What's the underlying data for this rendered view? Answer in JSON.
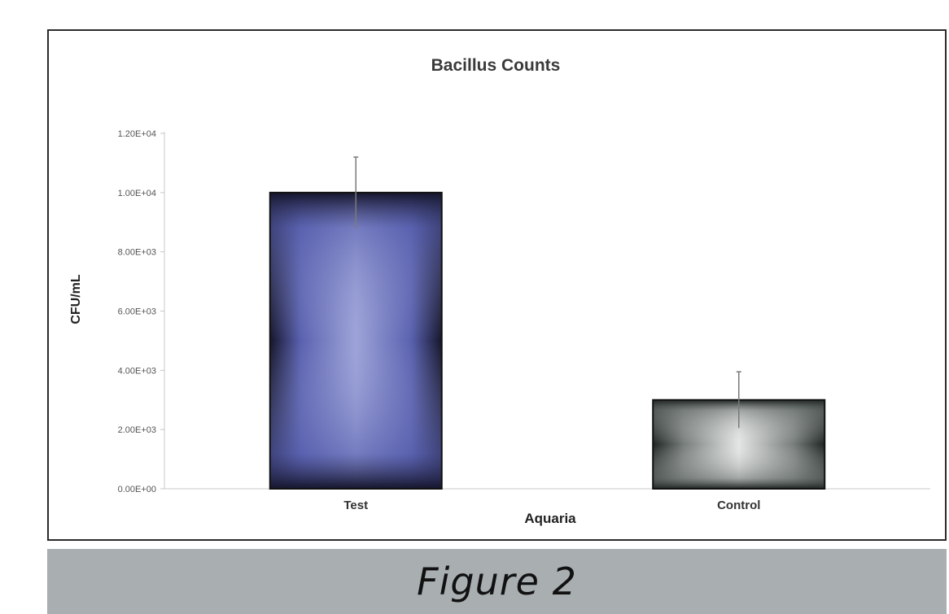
{
  "chart_data": {
    "type": "bar",
    "title": "Bacillus Counts",
    "xlabel": "Aquaria",
    "ylabel": "CFU/mL",
    "categories": [
      "Test",
      "Control"
    ],
    "values": [
      10000,
      3000
    ],
    "error": [
      1200,
      950
    ],
    "ylim": [
      0,
      12000
    ],
    "yticks": [
      0,
      2000,
      4000,
      6000,
      8000,
      10000,
      12000
    ],
    "ytick_labels": [
      "0.00E+00",
      "2.00E+03",
      "4.00E+03",
      "6.00E+03",
      "8.00E+03",
      "1.00E+04",
      "1.20E+04"
    ],
    "grid": false,
    "legend": "none",
    "bar_colors": [
      {
        "edge": "#15152b",
        "mid": "#5a62b0",
        "center": "#9ea4d8"
      },
      {
        "edge": "#1d2422",
        "mid": "#777d7b",
        "center": "#e4e6e5"
      }
    ]
  },
  "caption": "Figure 2",
  "colors": {
    "frame": "#2b2b2b",
    "caption_band": "#a9aeb1",
    "axis": "#c8c8c8",
    "error_bar": "#7a7a7a"
  }
}
